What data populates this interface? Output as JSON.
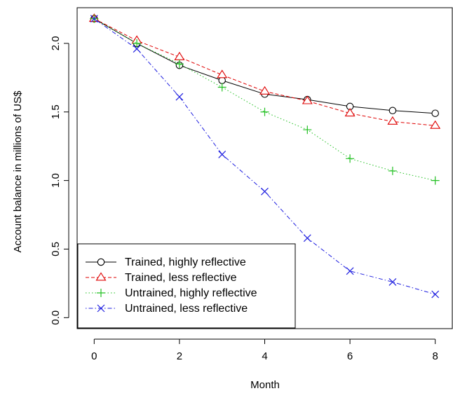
{
  "chart_data": {
    "type": "line",
    "title": "",
    "xlabel": "Month",
    "ylabel": "Account balance in millions of US$",
    "xlim": [
      -0.4,
      8.4
    ],
    "ylim": [
      -0.08,
      2.26
    ],
    "xticks": [
      0,
      2,
      4,
      6,
      8
    ],
    "yticks": [
      0.0,
      0.5,
      1.0,
      1.5,
      2.0
    ],
    "ytick_labels": [
      "0.0",
      "0.5",
      "1.0",
      "1.5",
      "2.0"
    ],
    "grid": false,
    "legend_position": "bottom-left",
    "x": [
      0,
      1,
      2,
      3,
      4,
      5,
      6,
      7,
      8
    ],
    "series": [
      {
        "name": "Trained, highly reflective",
        "color": "#000000",
        "marker": "circle",
        "dash": "solid",
        "values": [
          2.18,
          2.0,
          1.84,
          1.73,
          1.63,
          1.59,
          1.54,
          1.51,
          1.49
        ]
      },
      {
        "name": "Trained, less reflective",
        "color": "#df0000",
        "marker": "triangle",
        "dash": "dashed",
        "values": [
          2.18,
          2.02,
          1.9,
          1.77,
          1.65,
          1.58,
          1.49,
          1.43,
          1.4
        ]
      },
      {
        "name": "Untrained, highly reflective",
        "color": "#22c022",
        "marker": "plus",
        "dash": "dotted",
        "values": [
          2.18,
          2.0,
          1.85,
          1.68,
          1.5,
          1.37,
          1.16,
          1.07,
          1.0
        ]
      },
      {
        "name": "Untrained, less reflective",
        "color": "#1f1fe0",
        "marker": "cross",
        "dash": "dotdash",
        "values": [
          2.18,
          1.96,
          1.61,
          1.19,
          0.92,
          0.58,
          0.34,
          0.26,
          0.17
        ]
      }
    ]
  }
}
